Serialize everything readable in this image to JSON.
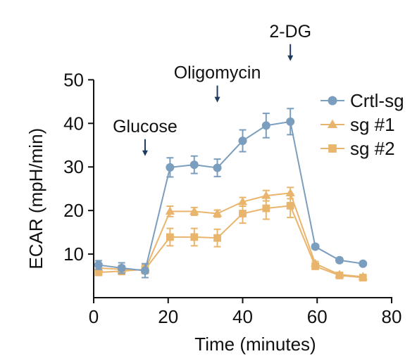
{
  "chart_data": {
    "type": "line",
    "title": "",
    "xlabel": "Time (minutes)",
    "ylabel": "ECAR (mpH/min)",
    "xlim": [
      0,
      80
    ],
    "ylim": [
      0,
      52
    ],
    "x_ticks": [
      "0",
      "20",
      "40",
      "60",
      "80"
    ],
    "x_tick_values": [
      0,
      20,
      40,
      60,
      80
    ],
    "y_ticks": [
      "10",
      "20",
      "30",
      "40",
      "50"
    ],
    "y_tick_values": [
      10,
      20,
      30,
      40,
      50
    ],
    "grid": false,
    "legend_position": "top-right",
    "x": [
      1.3,
      7.5,
      13.8,
      20.5,
      27,
      33.2,
      40,
      46.3,
      52.8,
      59.5,
      66,
      72.3
    ],
    "series": [
      {
        "name": "Crtl-sg",
        "marker": "circle",
        "color": "#7B9EBE",
        "values": [
          7.5,
          6.8,
          6.2,
          29.9,
          30.5,
          29.8,
          36.0,
          39.5,
          40.4,
          11.7,
          8.6,
          7.8
        ],
        "errors": [
          1.0,
          1.2,
          1.6,
          2.2,
          2.0,
          2.0,
          2.5,
          2.8,
          3.0,
          0.5,
          0.5,
          0.4
        ]
      },
      {
        "name": "sg #1",
        "marker": "triangle",
        "color": "#E9B56C",
        "values": [
          6.8,
          6.5,
          6.3,
          19.8,
          19.8,
          19.3,
          22.0,
          23.4,
          24.0,
          7.8,
          5.3,
          4.8
        ],
        "errors": [
          0.8,
          0.9,
          0.8,
          1.2,
          0.9,
          0.8,
          1.0,
          1.2,
          1.3,
          0.5,
          0.4,
          0.3
        ]
      },
      {
        "name": "sg #2",
        "marker": "square",
        "color": "#E9B56C",
        "values": [
          5.8,
          6.1,
          6.5,
          13.9,
          13.9,
          13.7,
          19.3,
          20.5,
          21.1,
          7.2,
          5.1,
          4.6
        ],
        "errors": [
          0.7,
          0.8,
          1.0,
          2.0,
          2.0,
          2.0,
          2.2,
          2.5,
          2.7,
          0.5,
          0.4,
          0.3
        ]
      }
    ],
    "annotations": [
      {
        "label": "Glucose",
        "x": 13.8,
        "arrow_y": 32.5
      },
      {
        "label": "Oligomycin",
        "x": 33.2,
        "arrow_y": 44.8
      },
      {
        "label": "2-DG",
        "x": 52.8,
        "arrow_y": 54.3
      }
    ]
  }
}
